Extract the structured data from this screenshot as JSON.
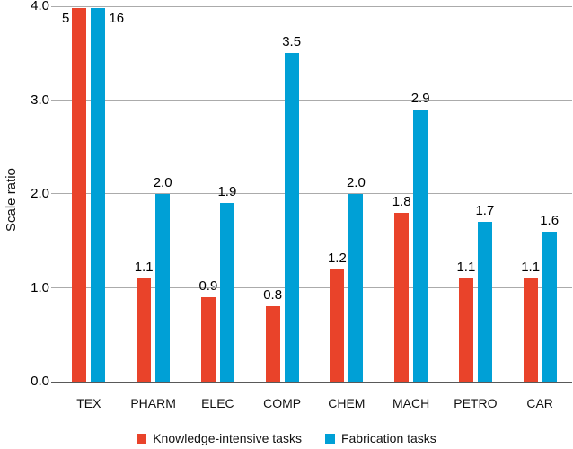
{
  "chart_data": {
    "type": "bar",
    "title": "",
    "xlabel": "",
    "ylabel": "Scale ratio",
    "ylim": [
      0.0,
      4.0
    ],
    "ytick_labels": [
      "0.0",
      "1.0",
      "2.0",
      "3.0",
      "4.0"
    ],
    "grid": true,
    "legend_position": "bottom",
    "categories": [
      "TEX",
      "PHARM",
      "ELEC",
      "COMP",
      "CHEM",
      "MACH",
      "PETRO",
      "CAR"
    ],
    "series": [
      {
        "name": "Knowledge-intensive tasks",
        "color": "#e9432a",
        "values": [
          5,
          1.1,
          0.9,
          0.8,
          1.2,
          1.8,
          1.1,
          1.1
        ],
        "labels": [
          "5",
          "1.1",
          "0.9",
          "0.8",
          "1.2",
          "1.8",
          "1.1",
          "1.1"
        ]
      },
      {
        "name": "Fabrication tasks",
        "color": "#00a0d6",
        "values": [
          16,
          2.0,
          1.9,
          3.5,
          2.0,
          2.9,
          1.7,
          1.6
        ],
        "labels": [
          "16",
          "2.0",
          "1.9",
          "3.5",
          "2.0",
          "2.9",
          "1.7",
          "1.6"
        ]
      }
    ]
  },
  "colors": {
    "background": "#ffffff",
    "gridline": "#ababab",
    "axis_line": "#595959",
    "text": "#000000"
  }
}
